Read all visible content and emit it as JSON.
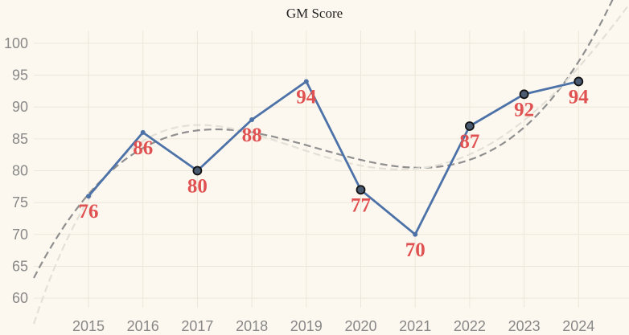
{
  "chart_data": {
    "type": "line",
    "title": "GM Score",
    "xlabel": "",
    "ylabel": "",
    "x": [
      "2015",
      "2016",
      "2017",
      "2018",
      "2019",
      "2020",
      "2021",
      "2022",
      "2023",
      "2024"
    ],
    "series": [
      {
        "values": [
          76,
          86,
          80,
          88,
          94,
          77,
          70,
          87,
          92,
          94
        ],
        "color": "#4c72a8",
        "highlighted": [
          "2017",
          "2020",
          "2022",
          "2023",
          "2024"
        ]
      }
    ],
    "data_labels": [
      "76",
      "86",
      "80",
      "88",
      "94",
      "77",
      "70",
      "87",
      "92",
      "94"
    ],
    "trend_lines": [
      {
        "style": "dashed",
        "color": "#8f8f8f"
      },
      {
        "style": "dashed",
        "color": "#e3e0d8"
      }
    ],
    "yticks": [
      "60",
      "65",
      "70",
      "75",
      "80",
      "85",
      "90",
      "95",
      "100"
    ],
    "ylim": [
      58.5,
      102
    ],
    "grid": true,
    "legend": "none"
  }
}
